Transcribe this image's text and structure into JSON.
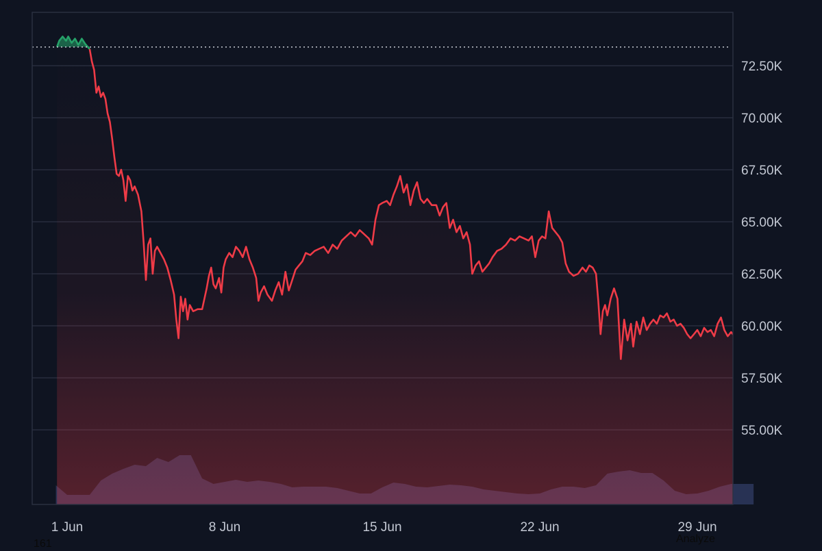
{
  "chart_data": {
    "type": "line",
    "y_ticks": [
      "72.50K",
      "70.00K",
      "67.50K",
      "65.00K",
      "62.50K",
      "60.00K",
      "57.50K",
      "55.00K"
    ],
    "y_tick_values": [
      72500,
      70000,
      67500,
      65000,
      62500,
      60000,
      57500,
      55000
    ],
    "x_ticks": [
      "1 Jun",
      "8 Jun",
      "15 Jun",
      "22 Jun",
      "29 Jun"
    ],
    "x_tick_days": [
      1,
      8,
      15,
      22,
      29
    ],
    "x_range_days": [
      0.5,
      31.5
    ],
    "ylim": [
      52000,
      74000
    ],
    "reference_price": 73400,
    "grid": true,
    "colors": {
      "background": "#0f1421",
      "grid": "#2c3243",
      "up": "#26a269",
      "down": "#ef3b47",
      "volume": "#2a3457",
      "axis_text": "#c3c8d3"
    },
    "price_series": [
      [
        0.55,
        73400
      ],
      [
        0.65,
        73700
      ],
      [
        0.8,
        73900
      ],
      [
        0.95,
        73700
      ],
      [
        1.05,
        73900
      ],
      [
        1.2,
        73600
      ],
      [
        1.35,
        73800
      ],
      [
        1.5,
        73500
      ],
      [
        1.65,
        73800
      ],
      [
        1.8,
        73550
      ],
      [
        2.0,
        73300
      ],
      [
        2.1,
        72700
      ],
      [
        2.2,
        72300
      ],
      [
        2.3,
        71200
      ],
      [
        2.4,
        71500
      ],
      [
        2.5,
        71000
      ],
      [
        2.6,
        71200
      ],
      [
        2.7,
        70900
      ],
      [
        2.8,
        70200
      ],
      [
        2.9,
        69800
      ],
      [
        3.0,
        69000
      ],
      [
        3.1,
        68100
      ],
      [
        3.2,
        67300
      ],
      [
        3.3,
        67200
      ],
      [
        3.4,
        67500
      ],
      [
        3.5,
        67000
      ],
      [
        3.6,
        66000
      ],
      [
        3.7,
        67200
      ],
      [
        3.8,
        67000
      ],
      [
        3.9,
        66500
      ],
      [
        4.0,
        66700
      ],
      [
        4.15,
        66300
      ],
      [
        4.3,
        65500
      ],
      [
        4.4,
        64000
      ],
      [
        4.5,
        62200
      ],
      [
        4.6,
        63900
      ],
      [
        4.7,
        64200
      ],
      [
        4.8,
        62500
      ],
      [
        4.9,
        63600
      ],
      [
        5.0,
        63800
      ],
      [
        5.15,
        63500
      ],
      [
        5.3,
        63200
      ],
      [
        5.45,
        62800
      ],
      [
        5.6,
        62200
      ],
      [
        5.75,
        61500
      ],
      [
        5.85,
        60300
      ],
      [
        5.95,
        59400
      ],
      [
        6.05,
        61400
      ],
      [
        6.15,
        60700
      ],
      [
        6.25,
        61300
      ],
      [
        6.35,
        60300
      ],
      [
        6.45,
        61000
      ],
      [
        6.6,
        60700
      ],
      [
        6.8,
        60800
      ],
      [
        7.0,
        60800
      ],
      [
        7.1,
        61300
      ],
      [
        7.2,
        61800
      ],
      [
        7.3,
        62400
      ],
      [
        7.4,
        62800
      ],
      [
        7.5,
        62000
      ],
      [
        7.6,
        61800
      ],
      [
        7.75,
        62300
      ],
      [
        7.85,
        61600
      ],
      [
        7.95,
        62800
      ],
      [
        8.05,
        63200
      ],
      [
        8.2,
        63500
      ],
      [
        8.35,
        63300
      ],
      [
        8.5,
        63800
      ],
      [
        8.65,
        63600
      ],
      [
        8.8,
        63300
      ],
      [
        8.95,
        63800
      ],
      [
        9.1,
        63200
      ],
      [
        9.25,
        62800
      ],
      [
        9.4,
        62300
      ],
      [
        9.5,
        61200
      ],
      [
        9.6,
        61600
      ],
      [
        9.75,
        61900
      ],
      [
        9.9,
        61500
      ],
      [
        10.1,
        61200
      ],
      [
        10.25,
        61700
      ],
      [
        10.4,
        62100
      ],
      [
        10.55,
        61500
      ],
      [
        10.7,
        62600
      ],
      [
        10.85,
        61700
      ],
      [
        11.0,
        62200
      ],
      [
        11.15,
        62700
      ],
      [
        11.3,
        62900
      ],
      [
        11.45,
        63100
      ],
      [
        11.6,
        63500
      ],
      [
        11.8,
        63400
      ],
      [
        12.0,
        63600
      ],
      [
        12.2,
        63700
      ],
      [
        12.4,
        63800
      ],
      [
        12.6,
        63500
      ],
      [
        12.8,
        63900
      ],
      [
        13.0,
        63700
      ],
      [
        13.2,
        64100
      ],
      [
        13.4,
        64300
      ],
      [
        13.6,
        64500
      ],
      [
        13.8,
        64300
      ],
      [
        14.0,
        64600
      ],
      [
        14.2,
        64400
      ],
      [
        14.4,
        64200
      ],
      [
        14.55,
        63900
      ],
      [
        14.7,
        65100
      ],
      [
        14.85,
        65800
      ],
      [
        15.0,
        65900
      ],
      [
        15.2,
        66000
      ],
      [
        15.35,
        65800
      ],
      [
        15.5,
        66300
      ],
      [
        15.65,
        66700
      ],
      [
        15.8,
        67200
      ],
      [
        15.95,
        66400
      ],
      [
        16.1,
        66800
      ],
      [
        16.25,
        65800
      ],
      [
        16.4,
        66500
      ],
      [
        16.55,
        66900
      ],
      [
        16.7,
        66100
      ],
      [
        16.85,
        65900
      ],
      [
        17.0,
        66100
      ],
      [
        17.2,
        65800
      ],
      [
        17.4,
        65800
      ],
      [
        17.55,
        65300
      ],
      [
        17.7,
        65700
      ],
      [
        17.85,
        65900
      ],
      [
        18.0,
        64700
      ],
      [
        18.15,
        65100
      ],
      [
        18.3,
        64500
      ],
      [
        18.45,
        64800
      ],
      [
        18.6,
        64200
      ],
      [
        18.75,
        64500
      ],
      [
        18.9,
        63900
      ],
      [
        19.0,
        62500
      ],
      [
        19.15,
        62900
      ],
      [
        19.3,
        63100
      ],
      [
        19.45,
        62600
      ],
      [
        19.6,
        62800
      ],
      [
        19.75,
        63000
      ],
      [
        19.9,
        63300
      ],
      [
        20.1,
        63600
      ],
      [
        20.3,
        63700
      ],
      [
        20.5,
        63900
      ],
      [
        20.7,
        64200
      ],
      [
        20.9,
        64100
      ],
      [
        21.1,
        64300
      ],
      [
        21.3,
        64200
      ],
      [
        21.5,
        64100
      ],
      [
        21.65,
        64300
      ],
      [
        21.8,
        63300
      ],
      [
        21.95,
        64100
      ],
      [
        22.1,
        64300
      ],
      [
        22.25,
        64200
      ],
      [
        22.4,
        65500
      ],
      [
        22.55,
        64700
      ],
      [
        22.7,
        64500
      ],
      [
        22.85,
        64300
      ],
      [
        23.0,
        64000
      ],
      [
        23.15,
        63000
      ],
      [
        23.3,
        62600
      ],
      [
        23.5,
        62400
      ],
      [
        23.7,
        62500
      ],
      [
        23.9,
        62800
      ],
      [
        24.05,
        62600
      ],
      [
        24.2,
        62900
      ],
      [
        24.35,
        62800
      ],
      [
        24.5,
        62500
      ],
      [
        24.6,
        61200
      ],
      [
        24.7,
        59600
      ],
      [
        24.8,
        60700
      ],
      [
        24.9,
        61000
      ],
      [
        25.0,
        60500
      ],
      [
        25.15,
        61300
      ],
      [
        25.3,
        61800
      ],
      [
        25.45,
        61300
      ],
      [
        25.6,
        58400
      ],
      [
        25.75,
        60300
      ],
      [
        25.9,
        59300
      ],
      [
        26.05,
        60100
      ],
      [
        26.15,
        59000
      ],
      [
        26.3,
        60200
      ],
      [
        26.45,
        59600
      ],
      [
        26.6,
        60400
      ],
      [
        26.75,
        59800
      ],
      [
        26.9,
        60100
      ],
      [
        27.05,
        60300
      ],
      [
        27.2,
        60100
      ],
      [
        27.35,
        60500
      ],
      [
        27.5,
        60400
      ],
      [
        27.65,
        60600
      ],
      [
        27.8,
        60200
      ],
      [
        27.95,
        60300
      ],
      [
        28.1,
        60000
      ],
      [
        28.25,
        60100
      ],
      [
        28.4,
        59900
      ],
      [
        28.55,
        59600
      ],
      [
        28.7,
        59400
      ],
      [
        28.85,
        59600
      ],
      [
        29.0,
        59800
      ],
      [
        29.15,
        59500
      ],
      [
        29.3,
        59900
      ],
      [
        29.45,
        59700
      ],
      [
        29.6,
        59800
      ],
      [
        29.75,
        59500
      ],
      [
        29.9,
        60100
      ],
      [
        30.05,
        60400
      ],
      [
        30.2,
        59800
      ],
      [
        30.35,
        59500
      ],
      [
        30.5,
        59700
      ],
      [
        30.65,
        59500
      ]
    ],
    "volume_series": [
      [
        0.5,
        0.28
      ],
      [
        1.0,
        0.14
      ],
      [
        1.5,
        0.14
      ],
      [
        2.0,
        0.14
      ],
      [
        2.5,
        0.35
      ],
      [
        3.0,
        0.45
      ],
      [
        3.5,
        0.52
      ],
      [
        4.0,
        0.58
      ],
      [
        4.5,
        0.56
      ],
      [
        5.0,
        0.68
      ],
      [
        5.5,
        0.62
      ],
      [
        6.0,
        0.72
      ],
      [
        6.5,
        0.72
      ],
      [
        7.0,
        0.38
      ],
      [
        7.5,
        0.3
      ],
      [
        8.0,
        0.33
      ],
      [
        8.5,
        0.36
      ],
      [
        9.0,
        0.33
      ],
      [
        9.5,
        0.35
      ],
      [
        10.0,
        0.33
      ],
      [
        10.5,
        0.3
      ],
      [
        11.0,
        0.25
      ],
      [
        11.5,
        0.26
      ],
      [
        12.0,
        0.26
      ],
      [
        12.5,
        0.26
      ],
      [
        13.0,
        0.24
      ],
      [
        13.5,
        0.2
      ],
      [
        14.0,
        0.16
      ],
      [
        14.5,
        0.16
      ],
      [
        15.0,
        0.25
      ],
      [
        15.5,
        0.32
      ],
      [
        16.0,
        0.3
      ],
      [
        16.5,
        0.26
      ],
      [
        17.0,
        0.25
      ],
      [
        17.5,
        0.27
      ],
      [
        18.0,
        0.29
      ],
      [
        18.5,
        0.28
      ],
      [
        19.0,
        0.26
      ],
      [
        19.5,
        0.22
      ],
      [
        20.0,
        0.2
      ],
      [
        20.5,
        0.18
      ],
      [
        21.0,
        0.16
      ],
      [
        21.5,
        0.15
      ],
      [
        22.0,
        0.16
      ],
      [
        22.5,
        0.22
      ],
      [
        23.0,
        0.26
      ],
      [
        23.5,
        0.26
      ],
      [
        24.0,
        0.24
      ],
      [
        24.5,
        0.28
      ],
      [
        25.0,
        0.45
      ],
      [
        25.5,
        0.48
      ],
      [
        26.0,
        0.5
      ],
      [
        26.5,
        0.46
      ],
      [
        27.0,
        0.46
      ],
      [
        27.5,
        0.35
      ],
      [
        28.0,
        0.2
      ],
      [
        28.5,
        0.15
      ],
      [
        29.0,
        0.16
      ],
      [
        29.5,
        0.2
      ],
      [
        30.0,
        0.26
      ],
      [
        30.5,
        0.3
      ],
      [
        31.0,
        0.3
      ],
      [
        31.5,
        0.3
      ]
    ]
  },
  "footnotes": {
    "left": "161",
    "right": "Analyze"
  }
}
